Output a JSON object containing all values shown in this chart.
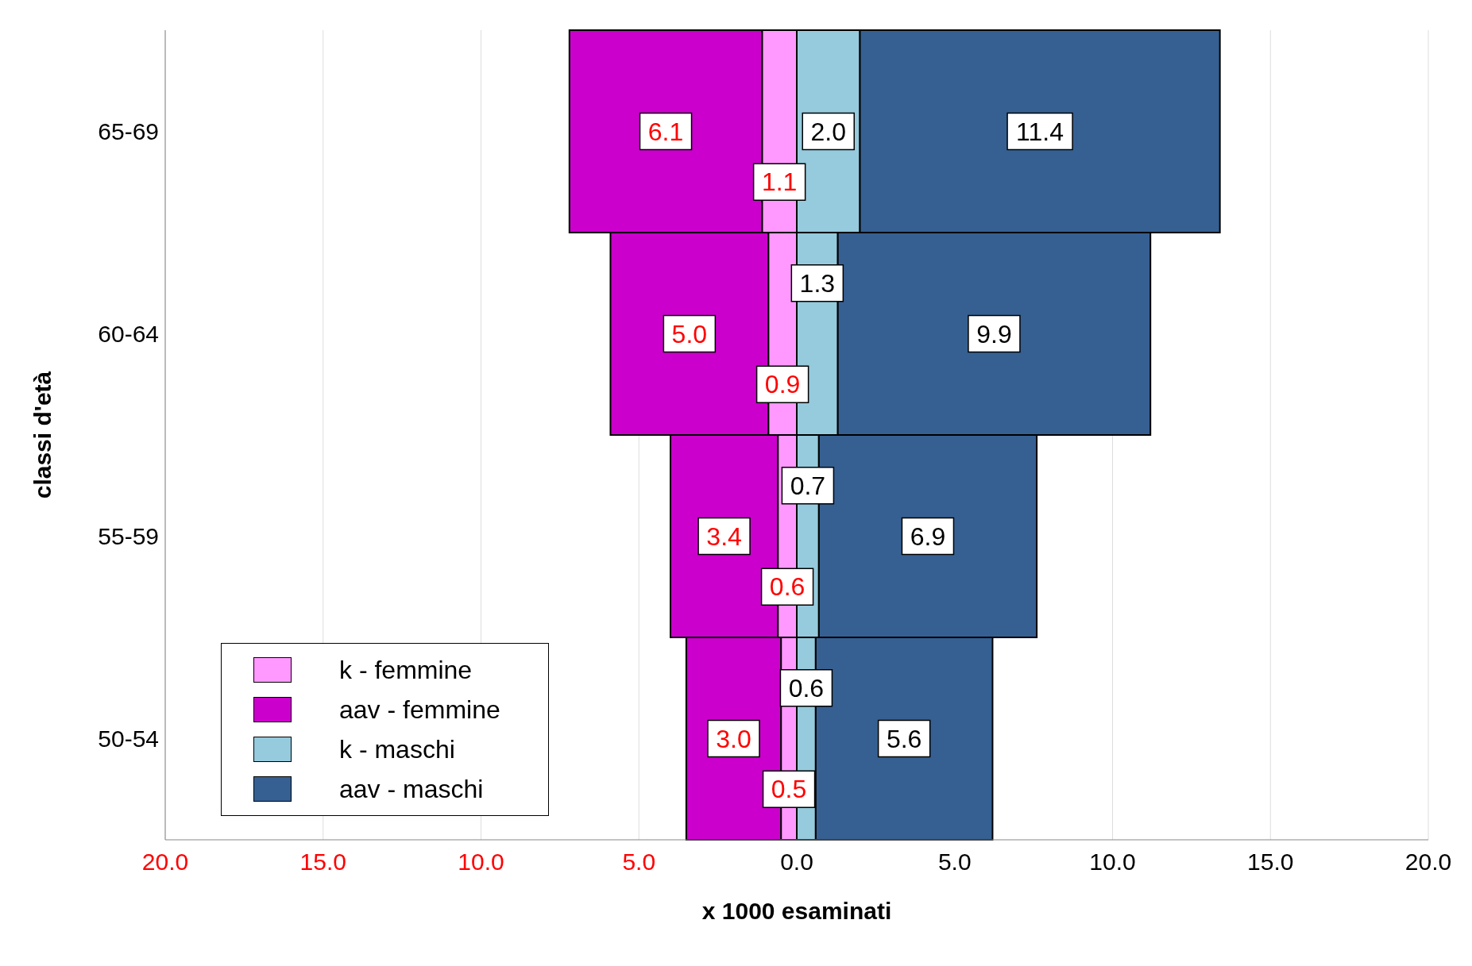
{
  "chart_data": {
    "type": "bar",
    "orientation": "horizontal",
    "xlabel": "x 1000 esaminati",
    "ylabel": "classi d'età",
    "categories": [
      "65-69",
      "60-64",
      "55-59",
      "50-54"
    ],
    "series": [
      {
        "name": "k - femmine",
        "color": "#ff99ff",
        "base": [
          -1.1,
          -0.9,
          -0.6,
          -0.5
        ],
        "values": [
          1.1,
          0.9,
          0.6,
          0.5
        ],
        "value_labels": [
          "1.1",
          "0.9",
          "0.6",
          "0.5"
        ]
      },
      {
        "name": "aav - femmine",
        "color": "#cc00cc",
        "base": [
          -7.2,
          -5.9,
          -4.0,
          -3.5
        ],
        "values": [
          6.1,
          5.0,
          3.4,
          3.0
        ],
        "value_labels": [
          "6.1",
          "5.0",
          "3.4",
          "3.0"
        ]
      },
      {
        "name": "k - maschi",
        "color": "#96cadd",
        "base": [
          0,
          0,
          0,
          0
        ],
        "values": [
          2.0,
          1.3,
          0.7,
          0.6
        ],
        "value_labels": [
          "2.0",
          "1.3",
          "0.7",
          "0.6"
        ]
      },
      {
        "name": "aav - maschi",
        "color": "#366092",
        "base": [
          2.0,
          1.3,
          0.7,
          0.6
        ],
        "values": [
          11.4,
          9.9,
          6.9,
          5.6
        ],
        "value_labels": [
          "11.4",
          "9.9",
          "6.9",
          "5.6"
        ]
      }
    ],
    "xlim": [
      -20,
      20
    ],
    "xticks": [
      {
        "value": -20,
        "label": "20.0"
      },
      {
        "value": -15,
        "label": "15.0"
      },
      {
        "value": -10,
        "label": "10.0"
      },
      {
        "value": -5,
        "label": "5.0"
      },
      {
        "value": 0,
        "label": "0.0"
      },
      {
        "value": 5,
        "label": "5.0"
      },
      {
        "value": 10,
        "label": "10.0"
      },
      {
        "value": 15,
        "label": "15.0"
      },
      {
        "value": 20,
        "label": "20.0"
      }
    ],
    "grid": "x",
    "legend": "bottom left"
  }
}
